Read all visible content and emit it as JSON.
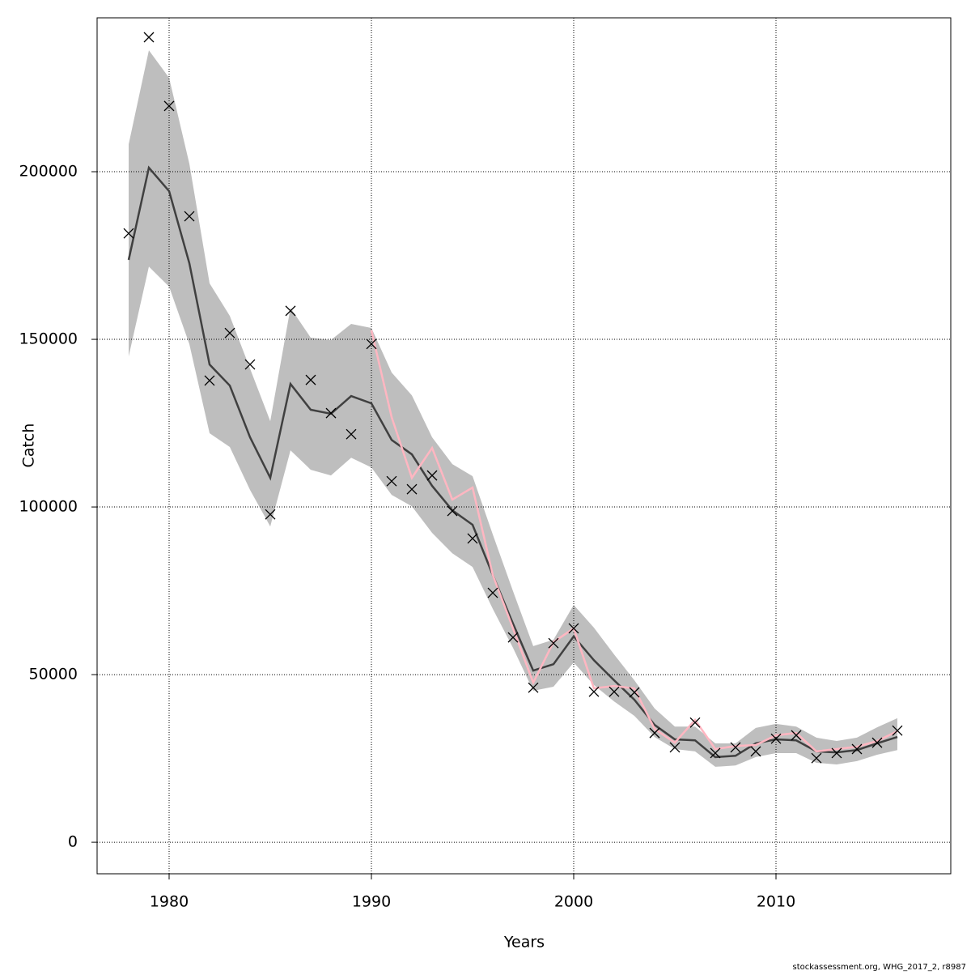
{
  "chart_data": {
    "type": "line",
    "xlabel": "Years",
    "ylabel": "Catch",
    "footnote": "stockassessment.org, WHG_2017_2, r8987",
    "x": [
      1978,
      1979,
      1980,
      1981,
      1982,
      1983,
      1984,
      1985,
      1986,
      1987,
      1988,
      1989,
      1990,
      1991,
      1992,
      1993,
      1994,
      1995,
      1996,
      1997,
      1998,
      1999,
      2000,
      2001,
      2002,
      2003,
      2004,
      2005,
      2006,
      2007,
      2008,
      2009,
      2010,
      2011,
      2012,
      2013,
      2014,
      2015,
      2016
    ],
    "band": {
      "color": "#bebebe",
      "upper": [
        208200,
        236200,
        228000,
        202400,
        166700,
        157000,
        141300,
        125600,
        159400,
        150500,
        149800,
        154600,
        153400,
        140100,
        133300,
        120800,
        112800,
        109200,
        91800,
        74900,
        58500,
        60400,
        70800,
        64000,
        56000,
        48300,
        39900,
        34500,
        34500,
        29500,
        29500,
        34100,
        35300,
        34500,
        31200,
        30200,
        31200,
        34300,
        37000
      ],
      "lower": [
        144900,
        171700,
        165700,
        148600,
        122000,
        117900,
        105100,
        94200,
        116900,
        111100,
        109400,
        114700,
        111800,
        103600,
        100200,
        92300,
        86200,
        82100,
        69600,
        58000,
        45200,
        46400,
        53600,
        46900,
        42000,
        37700,
        31400,
        27800,
        27100,
        22500,
        22900,
        25400,
        26600,
        26600,
        23700,
        23200,
        24200,
        26100,
        27500
      ]
    },
    "series": [
      {
        "style": "line",
        "color": "#404040",
        "values": [
          173700,
          201200,
          194200,
          172700,
          142500,
          136200,
          120800,
          108700,
          136700,
          129000,
          127800,
          133100,
          130900,
          120000,
          115700,
          106300,
          99000,
          94700,
          79700,
          65200,
          51200,
          53100,
          61400,
          54300,
          48300,
          42500,
          35000,
          30700,
          30400,
          25400,
          25800,
          29500,
          30700,
          30400,
          27100,
          26800,
          27500,
          29500,
          31400
        ]
      },
      {
        "style": "line",
        "color": "#ffb6c1",
        "values": [
          null,
          null,
          null,
          null,
          null,
          null,
          null,
          null,
          null,
          null,
          null,
          null,
          152700,
          126800,
          108700,
          117600,
          102200,
          105800,
          79700,
          63800,
          47600,
          59700,
          63800,
          45900,
          46600,
          45900,
          33800,
          29700,
          36500,
          27800,
          28700,
          29000,
          31900,
          32600,
          27100,
          27800,
          28500,
          30200,
          33100
        ]
      },
      {
        "style": "points",
        "color": "#000000",
        "values": [
          181600,
          240100,
          219600,
          186700,
          137700,
          151900,
          142500,
          97800,
          158500,
          137900,
          128000,
          121700,
          148600,
          107700,
          105300,
          109400,
          98800,
          90600,
          74400,
          61100,
          46100,
          59400,
          63800,
          44900,
          44900,
          44700,
          32600,
          28300,
          35700,
          26600,
          28300,
          27100,
          30900,
          31900,
          25100,
          26600,
          27800,
          29700,
          33300
        ]
      }
    ],
    "xlim": [
      1976.44,
      2018.64
    ],
    "ylim": [
      -9400,
      245900
    ],
    "xticks": [
      1980,
      1990,
      2000,
      2010
    ],
    "yticks": [
      0,
      50000,
      100000,
      150000,
      200000
    ],
    "grid": true
  }
}
